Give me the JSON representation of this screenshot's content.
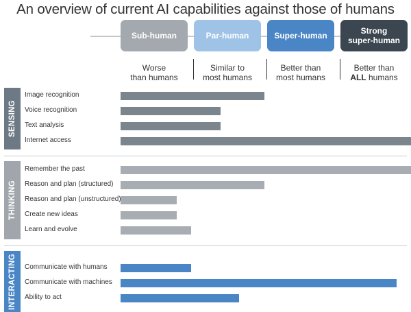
{
  "title": "An overview of current AI capabilities against those of humans",
  "levels": [
    {
      "name": "Sub-human",
      "desc1": "Worse",
      "desc2": "than humans",
      "color": "#a3a9ae"
    },
    {
      "name": "Par-human",
      "desc1": "Similar to",
      "desc2": "most humans",
      "color": "#9fc3e6"
    },
    {
      "name": "Super-human",
      "desc1": "Better than",
      "desc2": "most humans",
      "color": "#4a86c5"
    },
    {
      "name1": "Strong",
      "name2": "super-human",
      "desc1": "Better than",
      "desc2_bold": "ALL",
      "desc2_rest": " humans",
      "color": "#3b4650"
    }
  ],
  "chart_data": {
    "type": "bar",
    "orientation": "horizontal",
    "scale_note": "Bar end positions correspond to capability levels: 1 = Sub-human, 2 = Par-human, 3 = Super-human, 4 = Strong super-human",
    "sections": [
      {
        "name": "SENSING",
        "color": "#6d7a85",
        "bar_color": "#7a858e",
        "items": [
          {
            "label": "Image recognition",
            "value": 2.0
          },
          {
            "label": "Voice recognition",
            "value": 1.4
          },
          {
            "label": "Text analysis",
            "value": 1.4
          },
          {
            "label": "Internet access",
            "value": 4.0
          }
        ]
      },
      {
        "name": "THINKING",
        "color": "#a0a6ab",
        "bar_color": "#a7adb2",
        "items": [
          {
            "label": "Remember the past",
            "value": 4.0
          },
          {
            "label": "Reason and plan (structured)",
            "value": 2.0
          },
          {
            "label": "Reason and plan (unstructured)",
            "value": 0.8
          },
          {
            "label": "Create new ideas",
            "value": 0.8
          },
          {
            "label": "Learn and evolve",
            "value": 1.0
          }
        ]
      },
      {
        "name": "INTERACTING",
        "color": "#4a86c5",
        "bar_color": "#4a86c5",
        "items": [
          {
            "label": "Communicate with humans",
            "value": 1.0
          },
          {
            "label": "Communicate with machines",
            "value": 3.8
          },
          {
            "label": "Ability to act",
            "value": 1.65
          }
        ]
      }
    ]
  }
}
